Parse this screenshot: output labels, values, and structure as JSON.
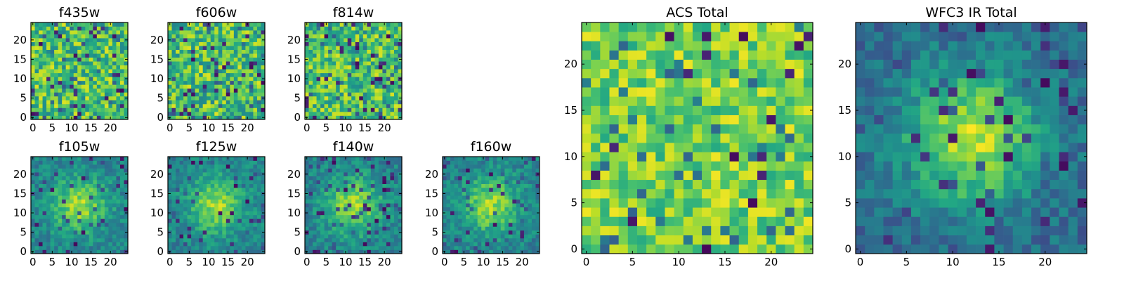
{
  "chart_data": [
    {
      "type": "heatmap",
      "title": "f435w",
      "pattern": "noise",
      "seed": 11,
      "xticks": [
        "0",
        "5",
        "10",
        "15",
        "20"
      ],
      "yticks": [
        "0",
        "5",
        "10",
        "15",
        "20"
      ],
      "xlim": [
        -0.5,
        24.5
      ],
      "ylim": [
        -0.5,
        24.5
      ],
      "colormap": "viridis"
    },
    {
      "type": "heatmap",
      "title": "f606w",
      "pattern": "noise",
      "seed": 23,
      "xticks": [
        "0",
        "5",
        "10",
        "15",
        "20"
      ],
      "yticks": [
        "0",
        "5",
        "10",
        "15",
        "20"
      ],
      "xlim": [
        -0.5,
        24.5
      ],
      "ylim": [
        -0.5,
        24.5
      ],
      "colormap": "viridis"
    },
    {
      "type": "heatmap",
      "title": "f814w",
      "pattern": "noise",
      "seed": 37,
      "xticks": [
        "0",
        "5",
        "10",
        "15",
        "20"
      ],
      "yticks": [
        "0",
        "5",
        "10",
        "15",
        "20"
      ],
      "xlim": [
        -0.5,
        24.5
      ],
      "ylim": [
        -0.5,
        24.5
      ],
      "colormap": "viridis"
    },
    {
      "type": "heatmap",
      "title": "f105w",
      "pattern": "source",
      "seed": 41,
      "xticks": [
        "0",
        "5",
        "10",
        "15",
        "20"
      ],
      "yticks": [
        "0",
        "5",
        "10",
        "15",
        "20"
      ],
      "xlim": [
        -0.5,
        24.5
      ],
      "ylim": [
        -0.5,
        24.5
      ],
      "colormap": "viridis"
    },
    {
      "type": "heatmap",
      "title": "f125w",
      "pattern": "source",
      "seed": 53,
      "xticks": [
        "0",
        "5",
        "10",
        "15",
        "20"
      ],
      "yticks": [
        "0",
        "5",
        "10",
        "15",
        "20"
      ],
      "xlim": [
        -0.5,
        24.5
      ],
      "ylim": [
        -0.5,
        24.5
      ],
      "colormap": "viridis"
    },
    {
      "type": "heatmap",
      "title": "f140w",
      "pattern": "source",
      "seed": 67,
      "xticks": [
        "0",
        "5",
        "10",
        "15",
        "20"
      ],
      "yticks": [
        "0",
        "5",
        "10",
        "15",
        "20"
      ],
      "xlim": [
        -0.5,
        24.5
      ],
      "ylim": [
        -0.5,
        24.5
      ],
      "colormap": "viridis"
    },
    {
      "type": "heatmap",
      "title": "f160w",
      "pattern": "source",
      "seed": 79,
      "xticks": [
        "0",
        "5",
        "10",
        "15",
        "20"
      ],
      "yticks": [
        "0",
        "5",
        "10",
        "15",
        "20"
      ],
      "xlim": [
        -0.5,
        24.5
      ],
      "ylim": [
        -0.5,
        24.5
      ],
      "colormap": "viridis"
    },
    {
      "type": "heatmap",
      "title": "ACS Total",
      "pattern": "noise-bright",
      "seed": 97,
      "xticks": [
        "0",
        "5",
        "10",
        "15",
        "20"
      ],
      "yticks": [
        "0",
        "5",
        "10",
        "15",
        "20"
      ],
      "xlim": [
        -0.5,
        24.5
      ],
      "ylim": [
        -0.5,
        24.5
      ],
      "colormap": "viridis"
    },
    {
      "type": "heatmap",
      "title": "WFC3 IR Total",
      "pattern": "source-strong",
      "seed": 131,
      "xticks": [
        "0",
        "5",
        "10",
        "15",
        "20"
      ],
      "yticks": [
        "0",
        "5",
        "10",
        "15",
        "20"
      ],
      "xlim": [
        -0.5,
        24.5
      ],
      "ylim": [
        -0.5,
        24.5
      ],
      "colormap": "viridis"
    }
  ]
}
